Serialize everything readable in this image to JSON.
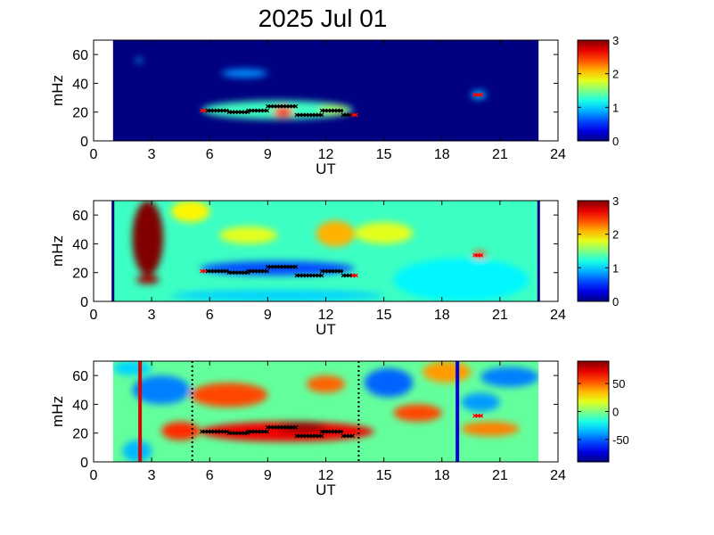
{
  "title": "2025 Jul 01",
  "chart_data": [
    {
      "type": "heatmap",
      "panel": "top",
      "xlabel": "UT",
      "ylabel": "mHz",
      "xlim": [
        0,
        24
      ],
      "ylim": [
        0,
        70
      ],
      "xticks": [
        0,
        3,
        6,
        9,
        12,
        15,
        18,
        21,
        24
      ],
      "yticks": [
        0,
        20,
        40,
        60
      ],
      "data_extent_ut": [
        1,
        23
      ],
      "background_value": 0,
      "colorbar": {
        "min": 0,
        "max": 3,
        "ticks": [
          0,
          1,
          2,
          3
        ],
        "tick_labels": [
          "0",
          "1",
          "2",
          "3"
        ]
      },
      "blobs": [
        {
          "ut": [
            5.6,
            13.4
          ],
          "mhz": [
            15,
            28
          ],
          "value": 1.3
        },
        {
          "ut": [
            9.3,
            10.3
          ],
          "mhz": [
            16,
            24
          ],
          "value": 2.6
        },
        {
          "ut": [
            11.6,
            13.2
          ],
          "mhz": [
            18,
            25
          ],
          "value": 1.6
        },
        {
          "ut": [
            6.6,
            9.0
          ],
          "mhz": [
            44,
            50
          ],
          "value": 0.8
        },
        {
          "ut": [
            2.2,
            2.5
          ],
          "mhz": [
            54,
            58
          ],
          "value": 0.9
        },
        {
          "ut": [
            19.5,
            20.3
          ],
          "mhz": [
            29,
            35
          ],
          "value": 0.9
        }
      ],
      "detections": [
        {
          "ut": [
            5.6,
            5.8
          ],
          "mhz": 21,
          "color": "red"
        },
        {
          "ut": [
            5.9,
            7.0
          ],
          "mhz": 21,
          "color": "black"
        },
        {
          "ut": [
            7.0,
            8.0
          ],
          "mhz": 20,
          "color": "black"
        },
        {
          "ut": [
            8.0,
            9.0
          ],
          "mhz": 21,
          "color": "black"
        },
        {
          "ut": [
            9.0,
            10.5
          ],
          "mhz": 24,
          "color": "black"
        },
        {
          "ut": [
            10.5,
            11.8
          ],
          "mhz": 18,
          "color": "black"
        },
        {
          "ut": [
            11.8,
            12.9
          ],
          "mhz": 21,
          "color": "black"
        },
        {
          "ut": [
            12.9,
            13.4
          ],
          "mhz": 18,
          "color": "black"
        },
        {
          "ut": [
            13.4,
            13.6
          ],
          "mhz": 18,
          "color": "red"
        },
        {
          "ut": [
            19.7,
            20.1
          ],
          "mhz": 32,
          "color": "red"
        }
      ]
    },
    {
      "type": "heatmap",
      "panel": "middle",
      "xlabel": "UT",
      "ylabel": "mHz",
      "xlim": [
        0,
        24
      ],
      "ylim": [
        0,
        70
      ],
      "xticks": [
        0,
        3,
        6,
        9,
        12,
        15,
        18,
        21,
        24
      ],
      "yticks": [
        0,
        20,
        40,
        60
      ],
      "data_extent_ut": [
        1,
        23
      ],
      "background_value": 1.3,
      "colorbar": {
        "min": 0,
        "max": 3,
        "ticks": [
          0,
          1,
          2,
          3
        ],
        "tick_labels": [
          "0",
          "1",
          "2",
          "3"
        ]
      },
      "edge_lines": [
        {
          "ut": 1.0,
          "color": "#000080"
        },
        {
          "ut": 23.0,
          "color": "#000080"
        }
      ],
      "blobs": [
        {
          "ut": [
            2.0,
            3.6
          ],
          "mhz": [
            18,
            70
          ],
          "value": 3.0
        },
        {
          "ut": [
            2.2,
            3.4
          ],
          "mhz": [
            12,
            18
          ],
          "value": 2.9
        },
        {
          "ut": [
            5.5,
            13.5
          ],
          "mhz": [
            18,
            28
          ],
          "value": 0.6
        },
        {
          "ut": [
            11.5,
            13.5
          ],
          "mhz": [
            38,
            56
          ],
          "value": 2.1
        },
        {
          "ut": [
            13.5,
            16.5
          ],
          "mhz": [
            40,
            55
          ],
          "value": 1.8
        },
        {
          "ut": [
            4.0,
            6.0
          ],
          "mhz": [
            55,
            70
          ],
          "value": 1.9
        },
        {
          "ut": [
            6.5,
            9.5
          ],
          "mhz": [
            40,
            52
          ],
          "value": 1.8
        },
        {
          "ut": [
            15.5,
            22.5
          ],
          "mhz": [
            0,
            30
          ],
          "value": 1.1
        },
        {
          "ut": [
            4.0,
            15.0
          ],
          "mhz": [
            0,
            8
          ],
          "value": 1.0
        },
        {
          "ut": [
            19.6,
            20.3
          ],
          "mhz": [
            30,
            35
          ],
          "value": 2.4
        }
      ],
      "detections": [
        {
          "ut": [
            5.6,
            5.8
          ],
          "mhz": 21,
          "color": "red"
        },
        {
          "ut": [
            5.9,
            7.0
          ],
          "mhz": 21,
          "color": "black"
        },
        {
          "ut": [
            7.0,
            8.0
          ],
          "mhz": 20,
          "color": "black"
        },
        {
          "ut": [
            8.0,
            9.0
          ],
          "mhz": 21,
          "color": "black"
        },
        {
          "ut": [
            9.0,
            10.5
          ],
          "mhz": 24,
          "color": "black"
        },
        {
          "ut": [
            10.5,
            11.8
          ],
          "mhz": 18,
          "color": "black"
        },
        {
          "ut": [
            11.8,
            12.9
          ],
          "mhz": 21,
          "color": "black"
        },
        {
          "ut": [
            12.9,
            13.4
          ],
          "mhz": 18,
          "color": "black"
        },
        {
          "ut": [
            13.4,
            13.6
          ],
          "mhz": 18,
          "color": "red"
        },
        {
          "ut": [
            19.7,
            20.1
          ],
          "mhz": 32,
          "color": "red"
        }
      ]
    },
    {
      "type": "heatmap",
      "panel": "bottom",
      "xlabel": "UT",
      "ylabel": "mHz",
      "xlim": [
        0,
        24
      ],
      "ylim": [
        0,
        70
      ],
      "xticks": [
        0,
        3,
        6,
        9,
        12,
        15,
        18,
        21,
        24
      ],
      "yticks": [
        0,
        20,
        40,
        60
      ],
      "data_extent_ut": [
        1,
        23
      ],
      "background_value": -5,
      "colorbar": {
        "min": -90,
        "max": 90,
        "ticks": [
          50,
          0,
          -50
        ],
        "tick_labels": [
          "50",
          "0",
          "-50"
        ]
      },
      "vertical_lines": [
        {
          "ut": 2.4,
          "color": "#e00000",
          "style": "solid"
        },
        {
          "ut": 5.1,
          "color": "#000000",
          "style": "dotted"
        },
        {
          "ut": 13.7,
          "color": "#000000",
          "style": "dotted"
        },
        {
          "ut": 18.8,
          "color": "#0000dd",
          "style": "solid"
        }
      ],
      "blobs": [
        {
          "ut": [
            5.5,
            14.5
          ],
          "mhz": [
            14,
            28
          ],
          "value": 70
        },
        {
          "ut": [
            9.5,
            12.0
          ],
          "mhz": [
            20,
            28
          ],
          "value": 85
        },
        {
          "ut": [
            3.5,
            5.5
          ],
          "mhz": [
            15,
            28
          ],
          "value": 60
        },
        {
          "ut": [
            5.0,
            9.0
          ],
          "mhz": [
            38,
            55
          ],
          "value": 55
        },
        {
          "ut": [
            11.0,
            13.0
          ],
          "mhz": [
            48,
            60
          ],
          "value": 50
        },
        {
          "ut": [
            15.5,
            18.0
          ],
          "mhz": [
            28,
            40
          ],
          "value": 55
        },
        {
          "ut": [
            19.0,
            22.0
          ],
          "mhz": [
            18,
            28
          ],
          "value": 45
        },
        {
          "ut": [
            2.0,
            5.0
          ],
          "mhz": [
            40,
            60
          ],
          "value": -45
        },
        {
          "ut": [
            14.0,
            16.5
          ],
          "mhz": [
            45,
            65
          ],
          "value": -50
        },
        {
          "ut": [
            20.0,
            23.0
          ],
          "mhz": [
            52,
            66
          ],
          "value": -45
        },
        {
          "ut": [
            19.0,
            21.0
          ],
          "mhz": [
            35,
            48
          ],
          "value": -40
        },
        {
          "ut": [
            17.0,
            19.5
          ],
          "mhz": [
            55,
            70
          ],
          "value": 40
        },
        {
          "ut": [
            1.5,
            3.0
          ],
          "mhz": [
            0,
            15
          ],
          "value": -35
        },
        {
          "ut": [
            1.0,
            3.0
          ],
          "mhz": [
            60,
            70
          ],
          "value": -30
        }
      ],
      "detections": [
        {
          "ut": [
            5.6,
            7.0
          ],
          "mhz": 21,
          "color": "black"
        },
        {
          "ut": [
            7.0,
            8.0
          ],
          "mhz": 20,
          "color": "black"
        },
        {
          "ut": [
            8.0,
            9.0
          ],
          "mhz": 21,
          "color": "black"
        },
        {
          "ut": [
            9.0,
            10.5
          ],
          "mhz": 24,
          "color": "black"
        },
        {
          "ut": [
            10.5,
            11.8
          ],
          "mhz": 18,
          "color": "black"
        },
        {
          "ut": [
            11.8,
            12.9
          ],
          "mhz": 21,
          "color": "black"
        },
        {
          "ut": [
            12.9,
            13.4
          ],
          "mhz": 18,
          "color": "black"
        },
        {
          "ut": [
            19.7,
            20.1
          ],
          "mhz": 32,
          "color": "red"
        }
      ]
    }
  ]
}
